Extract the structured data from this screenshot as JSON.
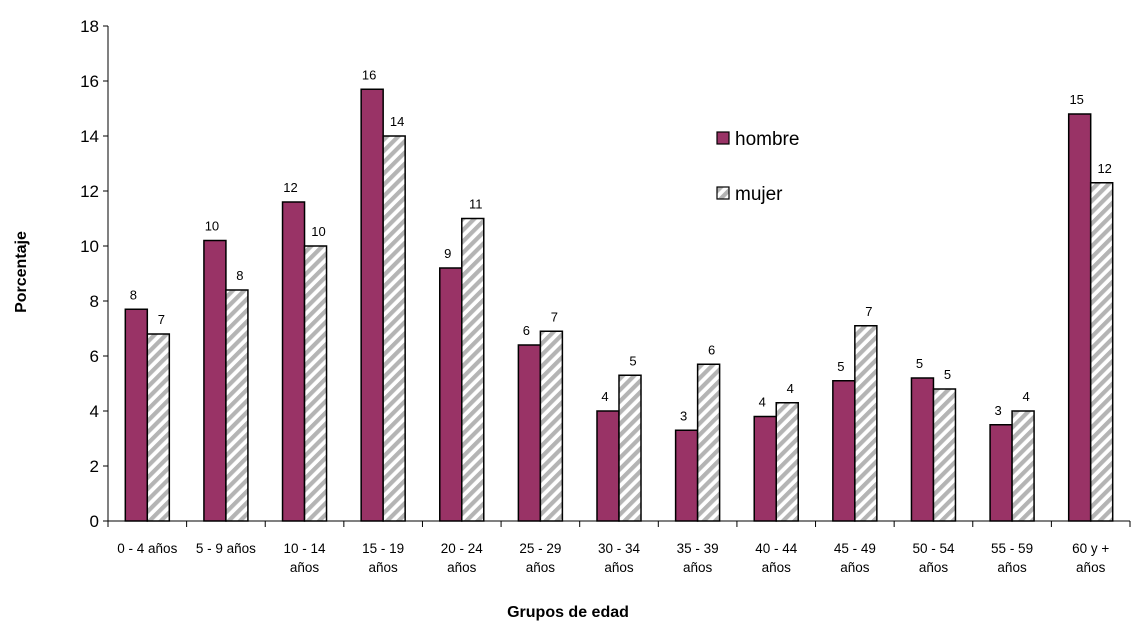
{
  "chart_data": {
    "type": "bar",
    "categories": [
      [
        "0 - 4 años"
      ],
      [
        "5 - 9 años"
      ],
      [
        "10 - 14",
        "años"
      ],
      [
        "15 - 19",
        "años"
      ],
      [
        "20 - 24",
        "años"
      ],
      [
        "25 - 29",
        "años"
      ],
      [
        "30 - 34",
        "años"
      ],
      [
        "35 - 39",
        "años"
      ],
      [
        "40 - 44",
        "años"
      ],
      [
        "45 - 49",
        "años"
      ],
      [
        "50 - 54",
        "años"
      ],
      [
        "55 - 59",
        "años"
      ],
      [
        "60 y +",
        "años"
      ]
    ],
    "series": [
      {
        "name": "hombre",
        "color": "#993366",
        "pattern": "solid",
        "values": [
          7.7,
          10.2,
          11.6,
          15.7,
          9.2,
          6.4,
          4.0,
          3.3,
          3.8,
          5.1,
          5.2,
          3.5,
          14.8
        ],
        "labels": [
          "8",
          "10",
          "12",
          "16",
          "9",
          "6",
          "4",
          "3",
          "4",
          "5",
          "5",
          "3",
          "15"
        ]
      },
      {
        "name": "mujer",
        "color": "#c0c0c0",
        "pattern": "diagonal-stripes",
        "values": [
          6.8,
          8.4,
          10.0,
          14.0,
          11.0,
          6.9,
          5.3,
          5.7,
          4.3,
          7.1,
          4.8,
          4.0,
          12.3
        ],
        "labels": [
          "7",
          "8",
          "10",
          "14",
          "11",
          "7",
          "5",
          "6",
          "4",
          "7",
          "5",
          "4",
          "12"
        ]
      }
    ],
    "xlabel": "Grupos de edad",
    "ylabel": "Porcentaje",
    "ylim": [
      0,
      18
    ],
    "yticks": [
      "0",
      "2",
      "4",
      "6",
      "8",
      "10",
      "12",
      "14",
      "16",
      "18"
    ],
    "grid": false,
    "legend_position": "top-right inside plot"
  }
}
